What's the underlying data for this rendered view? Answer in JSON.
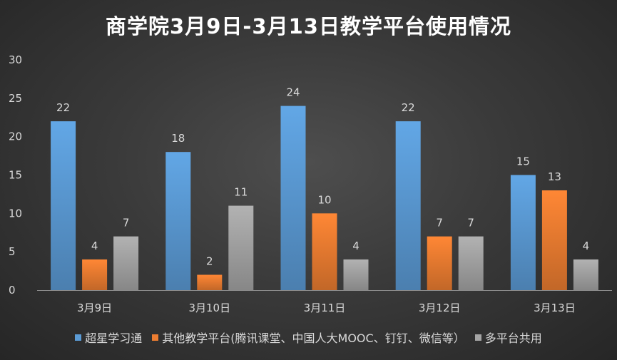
{
  "chart_data": {
    "type": "bar",
    "title": "商学院3月9日-3月13日教学平台使用情况",
    "categories": [
      "3月9日",
      "3月10日",
      "3月11日",
      "3月12日",
      "3月13日"
    ],
    "series": [
      {
        "name": "超星学习通",
        "values": [
          22,
          18,
          24,
          22,
          15
        ],
        "color": "#5b9bd5"
      },
      {
        "name": "其他教学平台(腾讯课堂、中国人大MOOC、钉钉、微信等）",
        "values": [
          4,
          2,
          10,
          7,
          13
        ],
        "color": "#ed7d31"
      },
      {
        "name": "多平台共用",
        "values": [
          7,
          11,
          4,
          7,
          4
        ],
        "color": "#a5a5a5"
      }
    ],
    "ylim": [
      0,
      30
    ],
    "yticks": [
      0,
      5,
      10,
      15,
      20,
      25,
      30
    ],
    "grid": false,
    "legend_position": "bottom",
    "xlabel": "",
    "ylabel": ""
  }
}
